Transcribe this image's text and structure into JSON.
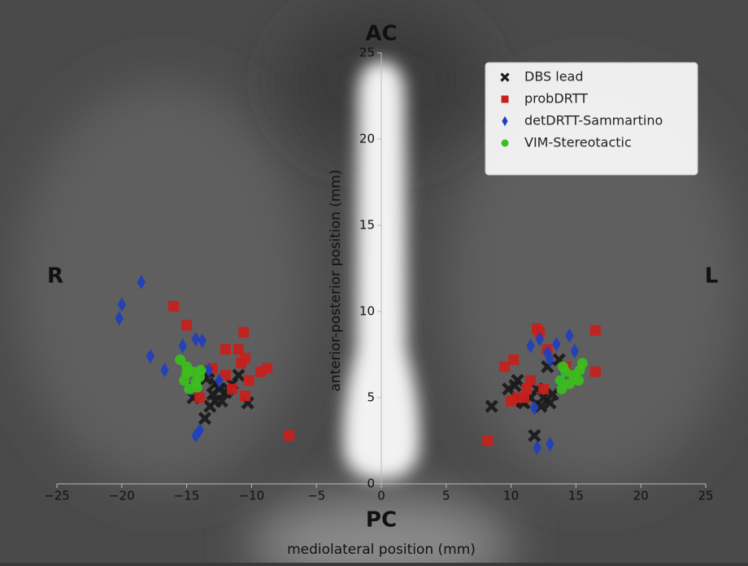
{
  "chart_data": {
    "type": "scatter",
    "annotations": [
      "AC",
      "PC",
      "R",
      "L"
    ],
    "xlabel": "mediolateral position (mm)",
    "ylabel": "anterior-posterior position (mm)",
    "xlim": [
      -25,
      25
    ],
    "ylim": [
      0,
      25
    ],
    "xticks": [
      {
        "value": -25,
        "label": "−25"
      },
      {
        "value": -20,
        "label": "−20"
      },
      {
        "value": -15,
        "label": "−15"
      },
      {
        "value": -10,
        "label": "−10"
      },
      {
        "value": -5,
        "label": "−5"
      },
      0,
      5,
      10,
      15,
      20,
      25
    ],
    "yticks": [
      0,
      5,
      10,
      15,
      20,
      25
    ],
    "legend": "upper right",
    "series": [
      {
        "name": "DBS lead",
        "color": "#1a1a1a",
        "marker": "x",
        "x": [
          -13.3,
          -13.5,
          -12.8,
          -12.5,
          -12.0,
          -11.5,
          -11.0,
          -10.3,
          -12.8,
          -13.2,
          -13.6,
          -14.5,
          -12.3,
          -11.8,
          -13.0,
          8.5,
          9.8,
          10.3,
          10.5,
          11.0,
          11.5,
          12.0,
          12.3,
          12.5,
          13.0,
          13.2,
          11.8,
          13.7,
          12.8,
          10.8
        ],
        "y": [
          6.5,
          6.1,
          5.8,
          5.5,
          5.3,
          5.8,
          6.3,
          4.7,
          4.8,
          4.5,
          3.8,
          5.0,
          4.8,
          5.5,
          5.2,
          4.5,
          5.5,
          5.7,
          6.0,
          4.7,
          5.0,
          5.5,
          4.5,
          5.0,
          4.7,
          5.2,
          2.8,
          7.2,
          6.8,
          4.8
        ]
      },
      {
        "name": "probDRTT",
        "color": "#c8201c",
        "marker": "square",
        "x": [
          -16.0,
          -15.0,
          -10.6,
          -11.0,
          -10.5,
          -12.0,
          -13.0,
          -10.2,
          -9.3,
          -8.8,
          -11.5,
          -10.5,
          -14.0,
          -7.1,
          -12.0,
          -10.8,
          8.2,
          9.5,
          10.2,
          10.5,
          10.0,
          11.0,
          11.5,
          12.0,
          12.2,
          12.8,
          16.5,
          16.5,
          14.2,
          12.5,
          11.2
        ],
        "y": [
          10.3,
          9.2,
          8.8,
          7.8,
          7.3,
          7.8,
          6.7,
          6.0,
          6.5,
          6.7,
          5.5,
          5.1,
          5.0,
          2.8,
          6.3,
          7.0,
          2.5,
          6.8,
          7.2,
          5.0,
          4.8,
          5.0,
          6.0,
          9.0,
          8.8,
          7.8,
          8.9,
          6.5,
          6.8,
          5.5,
          5.5
        ]
      },
      {
        "name": "detDRTT-Sammartino",
        "color": "#1f3fbf",
        "marker": "diamond",
        "x": [
          -18.5,
          -20.0,
          -20.2,
          -17.8,
          -16.7,
          -15.3,
          -14.3,
          -13.8,
          -14.3,
          -14.0,
          -14.7,
          -12.5,
          -13.3,
          11.5,
          12.2,
          12.8,
          13.0,
          13.5,
          14.5,
          14.9,
          11.8,
          12.0,
          13.0,
          13.8,
          14.0
        ],
        "y": [
          11.7,
          10.4,
          9.6,
          7.4,
          6.6,
          8.0,
          8.4,
          8.3,
          2.8,
          3.1,
          5.5,
          6.0,
          6.6,
          8.0,
          8.4,
          7.6,
          7.2,
          8.1,
          8.6,
          7.7,
          4.4,
          2.1,
          2.3,
          5.8,
          6.3
        ]
      },
      {
        "name": "VIM-Stereotactic",
        "color": "#3cbf1c",
        "marker": "circle",
        "x": [
          -15.5,
          -15.0,
          -14.5,
          -14.0,
          -15.2,
          -14.3,
          -13.9,
          -14.8,
          -14.2,
          -15.0,
          13.8,
          14.2,
          14.8,
          15.5,
          15.3,
          14.5,
          13.9,
          15.2,
          14.0
        ],
        "y": [
          7.2,
          6.8,
          6.5,
          6.2,
          6.0,
          5.9,
          6.6,
          5.5,
          5.6,
          6.4,
          6.0,
          6.5,
          6.3,
          7.0,
          6.6,
          5.8,
          5.5,
          6.0,
          6.8
        ]
      }
    ]
  }
}
